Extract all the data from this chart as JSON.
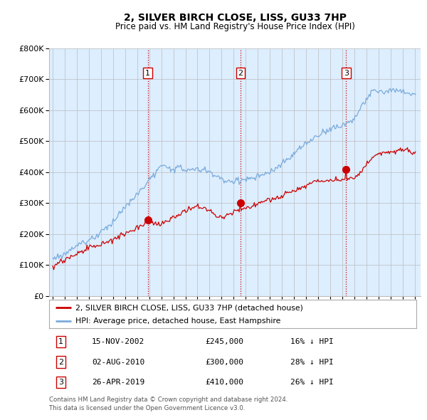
{
  "title": "2, SILVER BIRCH CLOSE, LISS, GU33 7HP",
  "subtitle": "Price paid vs. HM Land Registry's House Price Index (HPI)",
  "legend_line1": "2, SILVER BIRCH CLOSE, LISS, GU33 7HP (detached house)",
  "legend_line2": "HPI: Average price, detached house, East Hampshire",
  "footer1": "Contains HM Land Registry data © Crown copyright and database right 2024.",
  "footer2": "This data is licensed under the Open Government Licence v3.0.",
  "sales": [
    {
      "num": 1,
      "date": "15-NOV-2002",
      "price": 245000,
      "pct": "16%",
      "year": 2002.88
    },
    {
      "num": 2,
      "date": "02-AUG-2010",
      "price": 300000,
      "pct": "28%",
      "year": 2010.58
    },
    {
      "num": 3,
      "date": "26-APR-2019",
      "price": 410000,
      "pct": "26%",
      "year": 2019.32
    }
  ],
  "red_color": "#cc0000",
  "blue_color": "#7aabdb",
  "vline_color": "#cc0000",
  "background_color": "#ddeeff",
  "plot_bg": "#ffffff",
  "ylim": [
    0,
    800000
  ],
  "xlim_start": 1994.7,
  "xlim_end": 2025.5
}
